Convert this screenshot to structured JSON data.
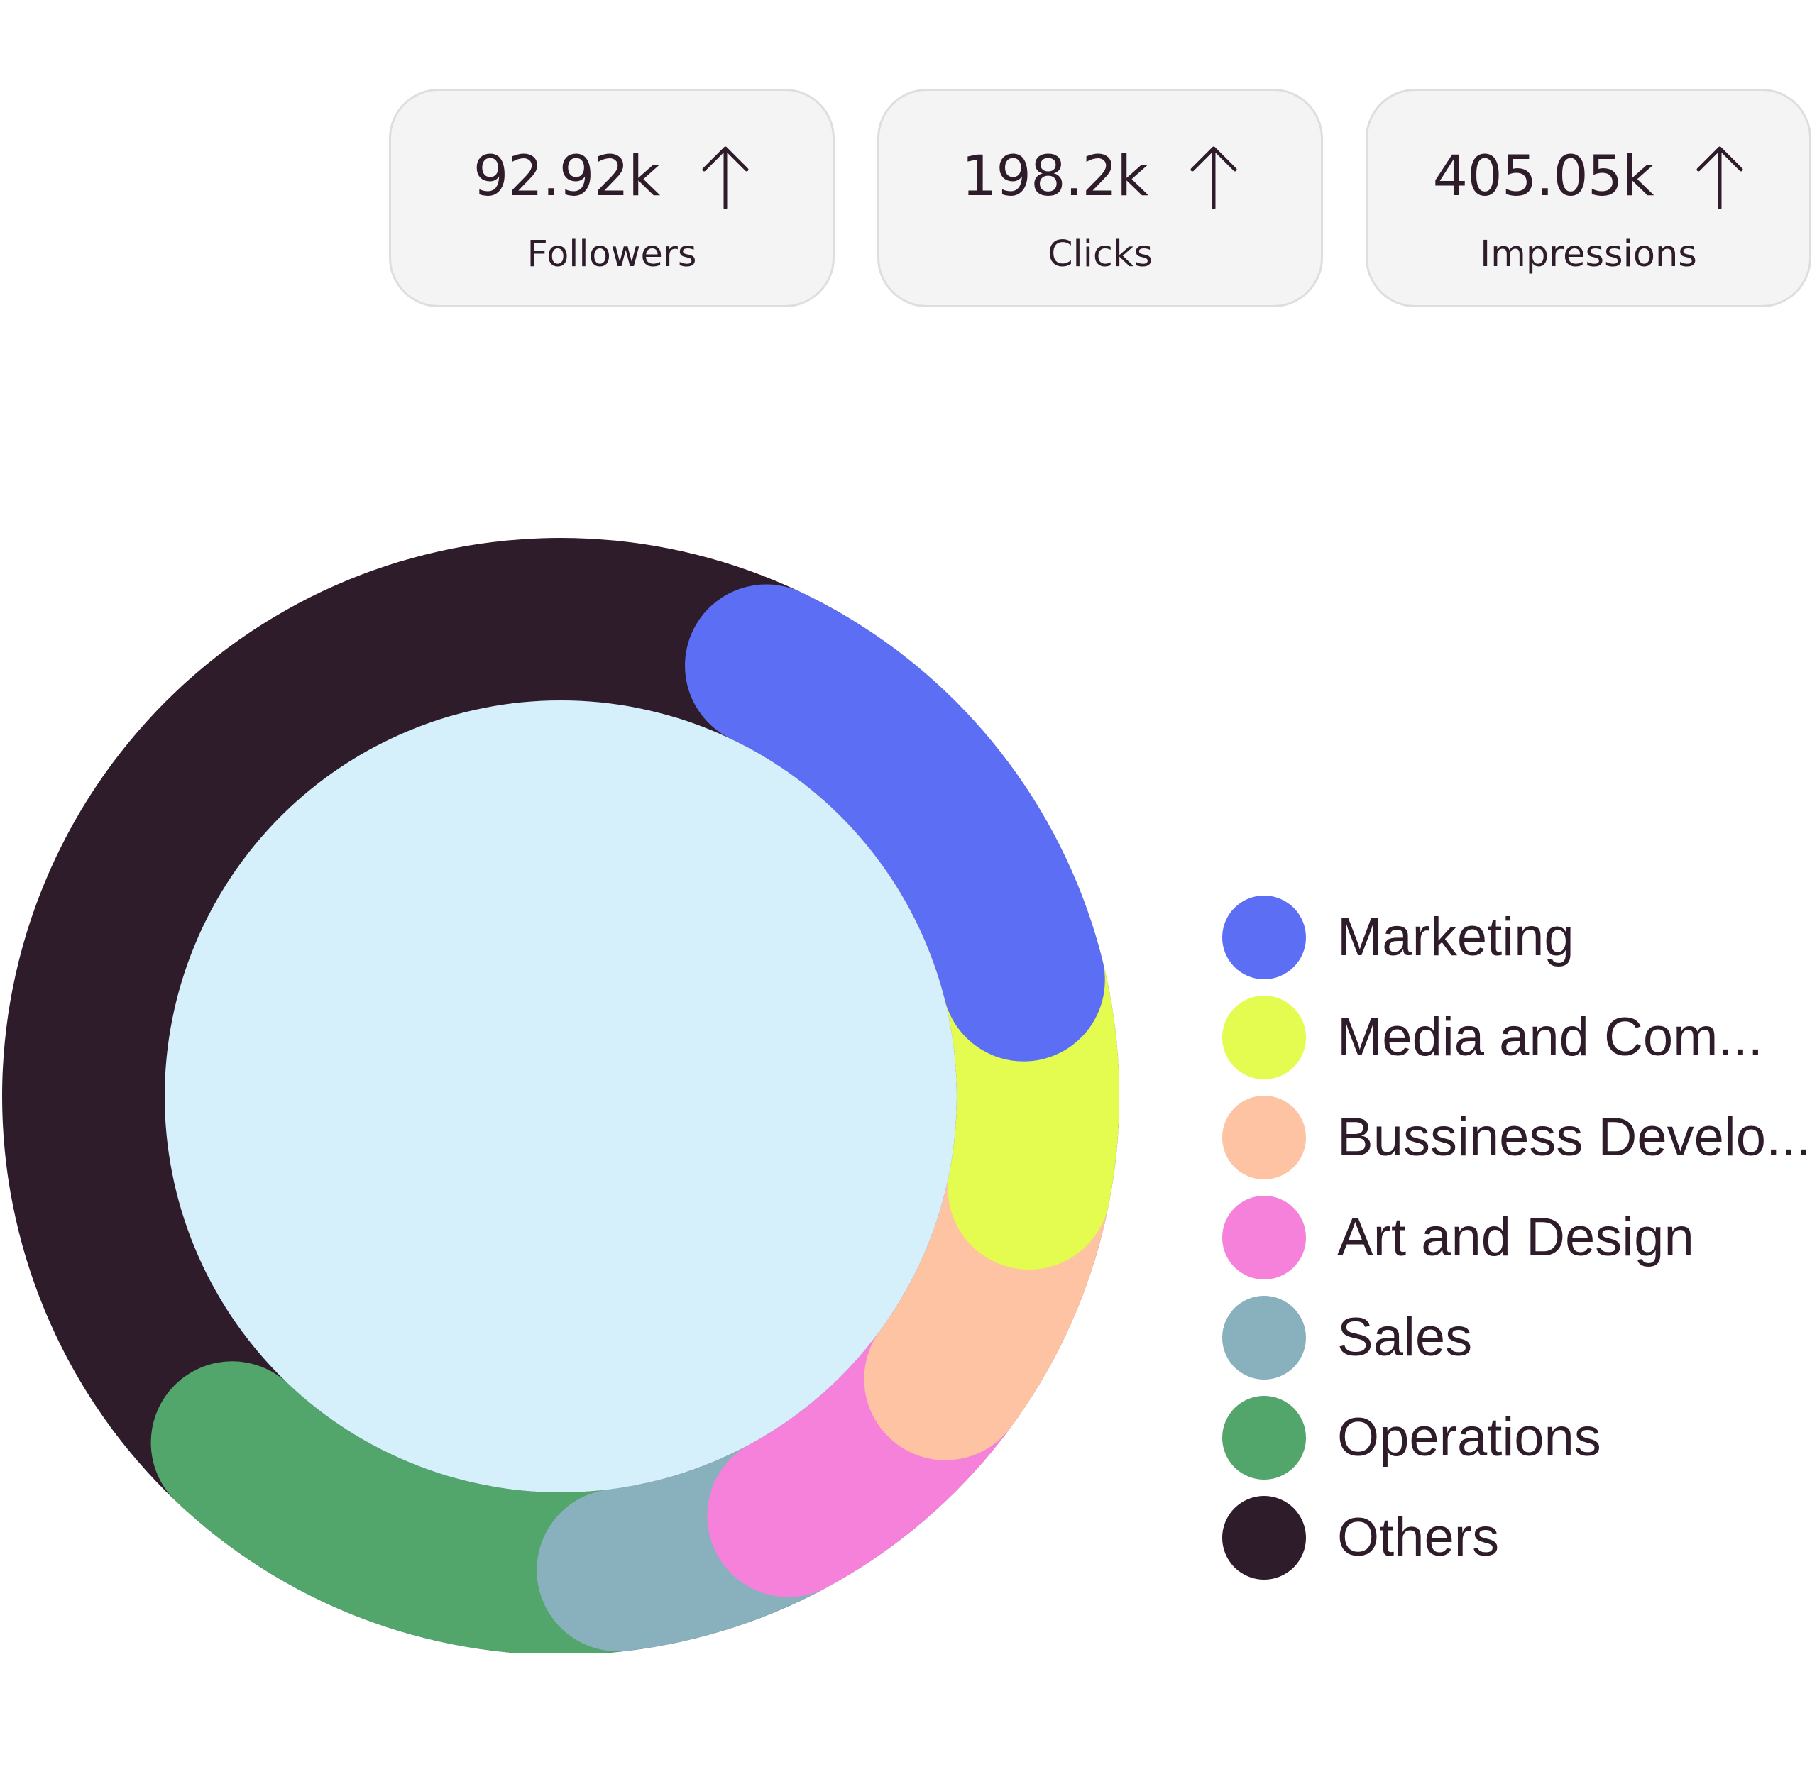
{
  "stats": [
    {
      "value": "92.92k",
      "label": "Followers",
      "trend_icon": "arrow-up-icon"
    },
    {
      "value": "198.2k",
      "label": "Clicks",
      "trend_icon": "arrow-up-icon"
    },
    {
      "value": "405.05k",
      "label": "Impressions",
      "trend_icon": "arrow-up-icon"
    }
  ],
  "chart_data": {
    "type": "pie",
    "donut": true,
    "categories": [
      "Marketing",
      "Media and Com...",
      "Bussiness Develo...",
      "Art and Design",
      "Sales",
      "Operations",
      "Others"
    ],
    "values": [
      14,
      7,
      7,
      7,
      6,
      14,
      45
    ],
    "colors": [
      "#5b6ef4",
      "#e4fb50",
      "#fec3a2",
      "#f581da",
      "#88b0bd",
      "#52a66b",
      "#2e1c2b"
    ],
    "center_color": "#d5effb",
    "legend_position": "right"
  }
}
